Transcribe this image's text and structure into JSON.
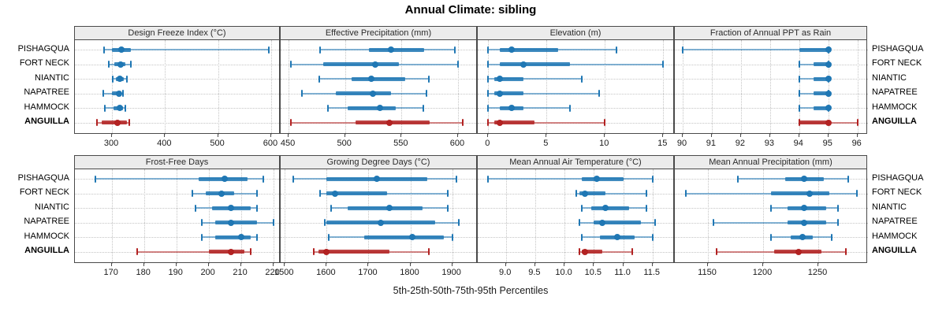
{
  "title": "Annual Climate: sibling",
  "caption": "5th-25th-50th-75th-95th Percentiles",
  "colors": {
    "series_default": "#1F77B4",
    "series_highlight": "#B22222",
    "strip_bg": "#ECECEC",
    "panel_border": "#4A4A4A",
    "grid": "#C4C4C4"
  },
  "stations": [
    {
      "label": "PISHAGQUA",
      "highlight": false
    },
    {
      "label": "FORT NECK",
      "highlight": false
    },
    {
      "label": "NIANTIC",
      "highlight": false
    },
    {
      "label": "NAPATREE",
      "highlight": false
    },
    {
      "label": "HAMMOCK",
      "highlight": false
    },
    {
      "label": "ANGUILLA",
      "highlight": true
    }
  ],
  "chart_data": [
    {
      "type": "dotplot-percentiles",
      "slug": "design-freeze-index",
      "row": 0,
      "col": 0,
      "title": "Design Freeze Index (°C)",
      "domain": [
        230,
        618
      ],
      "ticks": [
        300,
        400,
        500,
        600
      ],
      "tick_labels": [
        "300",
        "400",
        "500",
        "600"
      ],
      "percentiles": [
        "5th",
        "25th",
        "50th",
        "75th",
        "95th"
      ],
      "series": [
        {
          "name": "PISHAGQUA",
          "values": [
            285,
            300,
            318,
            335,
            595
          ]
        },
        {
          "name": "FORT NECK",
          "values": [
            294,
            305,
            316,
            325,
            336
          ]
        },
        {
          "name": "NIANTIC",
          "values": [
            302,
            308,
            315,
            322,
            328
          ]
        },
        {
          "name": "NAPATREE",
          "values": [
            283,
            300,
            313,
            318,
            321
          ]
        },
        {
          "name": "HAMMOCK",
          "values": [
            286,
            303,
            314,
            320,
            325
          ]
        },
        {
          "name": "ANGUILLA",
          "values": [
            271,
            280,
            311,
            328,
            333
          ]
        }
      ]
    },
    {
      "type": "dotplot-percentiles",
      "slug": "effective-precipitation",
      "row": 0,
      "col": 1,
      "title": "Effective Precipitation (mm)",
      "domain": [
        443,
        617.5
      ],
      "ticks": [
        450,
        500,
        550,
        600
      ],
      "tick_labels": [
        "450",
        "500",
        "550",
        "600"
      ],
      "percentiles": [
        "5th",
        "25th",
        "50th",
        "75th",
        "95th"
      ],
      "series": [
        {
          "name": "PISHAGQUA",
          "values": [
            478,
            521,
            541,
            570,
            597
          ]
        },
        {
          "name": "FORT NECK",
          "values": [
            452,
            481,
            527,
            548,
            600
          ]
        },
        {
          "name": "NIANTIC",
          "values": [
            477,
            506,
            523,
            553,
            574
          ]
        },
        {
          "name": "NAPATREE",
          "values": [
            462,
            492,
            525,
            541,
            572
          ]
        },
        {
          "name": "HAMMOCK",
          "values": [
            485,
            502,
            531,
            545,
            569
          ]
        },
        {
          "name": "ANGUILLA",
          "values": [
            452,
            509,
            539,
            575,
            604
          ]
        }
      ]
    },
    {
      "type": "dotplot-percentiles",
      "slug": "elevation",
      "row": 0,
      "col": 2,
      "title": "Elevation (m)",
      "domain": [
        -0.9,
        16
      ],
      "ticks": [
        0,
        5,
        10,
        15
      ],
      "tick_labels": [
        "0",
        "5",
        "10",
        "15"
      ],
      "percentiles": [
        "5th",
        "25th",
        "50th",
        "75th",
        "95th"
      ],
      "series": [
        {
          "name": "PISHAGQUA",
          "values": [
            0,
            1,
            2,
            6,
            11
          ]
        },
        {
          "name": "FORT NECK",
          "values": [
            0,
            1,
            3,
            7,
            15
          ]
        },
        {
          "name": "NIANTIC",
          "values": [
            0,
            0.5,
            1,
            3,
            8
          ]
        },
        {
          "name": "NAPATREE",
          "values": [
            0,
            0.5,
            1,
            3,
            9.5
          ]
        },
        {
          "name": "HAMMOCK",
          "values": [
            0,
            1,
            2,
            3,
            7
          ]
        },
        {
          "name": "ANGUILLA",
          "values": [
            0,
            0.5,
            1,
            4,
            10
          ]
        }
      ]
    },
    {
      "type": "dotplot-percentiles",
      "slug": "fraction-annual-ppt-as-rain",
      "row": 0,
      "col": 3,
      "title": "Fraction of Annual PPT as Rain",
      "domain": [
        89.73,
        96.36
      ],
      "ticks": [
        90,
        91,
        92,
        93,
        94,
        95,
        96
      ],
      "tick_labels": [
        "90",
        "91",
        "92",
        "93",
        "94",
        "95",
        "96"
      ],
      "percentiles": [
        "5th",
        "25th",
        "50th",
        "75th",
        "95th"
      ],
      "series": [
        {
          "name": "PISHAGQUA",
          "values": [
            90,
            94,
            95,
            95,
            95
          ]
        },
        {
          "name": "FORT NECK",
          "values": [
            94,
            94.5,
            95,
            95,
            95
          ]
        },
        {
          "name": "NIANTIC",
          "values": [
            94,
            94.5,
            95,
            95,
            95
          ]
        },
        {
          "name": "NAPATREE",
          "values": [
            94,
            94.5,
            95,
            95,
            95
          ]
        },
        {
          "name": "HAMMOCK",
          "values": [
            94,
            94.5,
            95,
            95,
            95
          ]
        },
        {
          "name": "ANGUILLA",
          "values": [
            94,
            94,
            95,
            95,
            96
          ]
        }
      ]
    },
    {
      "type": "dotplot-percentiles",
      "slug": "frost-free-days",
      "row": 1,
      "col": 0,
      "title": "Frost-Free Days",
      "domain": [
        158.6,
        222.3
      ],
      "ticks": [
        170,
        180,
        190,
        200,
        210,
        220
      ],
      "tick_labels": [
        "170",
        "180",
        "190",
        "200",
        "210",
        "220"
      ],
      "percentiles": [
        "5th",
        "25th",
        "50th",
        "75th",
        "95th"
      ],
      "series": [
        {
          "name": "PISHAGQUA",
          "values": [
            165,
            197,
            205,
            212,
            217
          ]
        },
        {
          "name": "FORT NECK",
          "values": [
            195,
            199,
            204,
            208,
            215
          ]
        },
        {
          "name": "NIANTIC",
          "values": [
            196,
            201,
            207,
            213,
            215
          ]
        },
        {
          "name": "NAPATREE",
          "values": [
            198,
            202,
            207,
            215,
            220
          ]
        },
        {
          "name": "HAMMOCK",
          "values": [
            198,
            202,
            210,
            213,
            215
          ]
        },
        {
          "name": "ANGUILLA",
          "values": [
            178,
            200,
            207,
            211,
            213
          ]
        }
      ]
    },
    {
      "type": "dotplot-percentiles",
      "slug": "growing-degree-days",
      "row": 1,
      "col": 1,
      "title": "Growing Degree Days (°C)",
      "domain": [
        1490,
        1961
      ],
      "ticks": [
        1500,
        1600,
        1700,
        1800,
        1900
      ],
      "tick_labels": [
        "1500",
        "1600",
        "1700",
        "1800",
        "1900"
      ],
      "percentiles": [
        "5th",
        "25th",
        "50th",
        "75th",
        "95th"
      ],
      "series": [
        {
          "name": "PISHAGQUA",
          "values": [
            1520,
            1600,
            1720,
            1840,
            1910
          ]
        },
        {
          "name": "FORT NECK",
          "values": [
            1585,
            1600,
            1620,
            1745,
            1890
          ]
        },
        {
          "name": "NIANTIC",
          "values": [
            1610,
            1650,
            1750,
            1830,
            1890
          ]
        },
        {
          "name": "NAPATREE",
          "values": [
            1595,
            1600,
            1730,
            1860,
            1915
          ]
        },
        {
          "name": "HAMMOCK",
          "values": [
            1605,
            1690,
            1805,
            1880,
            1900
          ]
        },
        {
          "name": "ANGUILLA",
          "values": [
            1570,
            1580,
            1600,
            1750,
            1845
          ]
        }
      ]
    },
    {
      "type": "dotplot-percentiles",
      "slug": "mean-annual-air-temperature",
      "row": 1,
      "col": 2,
      "title": "Mean Annual Air Temperature (°C)",
      "domain": [
        8.52,
        11.88
      ],
      "ticks": [
        9.0,
        9.5,
        10.0,
        10.5,
        11.0,
        11.5
      ],
      "tick_labels": [
        "9.0",
        "9.5",
        "10.0",
        "10.5",
        "11.0",
        "11.5"
      ],
      "percentiles": [
        "5th",
        "25th",
        "50th",
        "75th",
        "95th"
      ],
      "series": [
        {
          "name": "PISHAGQUA",
          "values": [
            8.7,
            10.3,
            10.55,
            11.0,
            11.5
          ]
        },
        {
          "name": "FORT NECK",
          "values": [
            10.2,
            10.25,
            10.35,
            10.7,
            11.4
          ]
        },
        {
          "name": "NIANTIC",
          "values": [
            10.3,
            10.45,
            10.7,
            11.1,
            11.4
          ]
        },
        {
          "name": "NAPATREE",
          "values": [
            10.25,
            10.5,
            10.65,
            11.3,
            11.55
          ]
        },
        {
          "name": "HAMMOCK",
          "values": [
            10.3,
            10.6,
            10.9,
            11.2,
            11.5
          ]
        },
        {
          "name": "ANGUILLA",
          "values": [
            10.25,
            10.3,
            10.35,
            10.65,
            11.15
          ]
        }
      ]
    },
    {
      "type": "dotplot-percentiles",
      "slug": "mean-annual-precipitation",
      "row": 1,
      "col": 3,
      "title": "Mean Annual Precipitation (mm)",
      "domain": [
        1120,
        1295
      ],
      "ticks": [
        1150,
        1200,
        1250
      ],
      "tick_labels": [
        "1150",
        "1200",
        "1250"
      ],
      "percentiles": [
        "5th",
        "25th",
        "50th",
        "75th",
        "95th"
      ],
      "series": [
        {
          "name": "PISHAGQUA",
          "values": [
            1177,
            1220,
            1237,
            1255,
            1277
          ]
        },
        {
          "name": "FORT NECK",
          "values": [
            1130,
            1207,
            1242,
            1260,
            1285
          ]
        },
        {
          "name": "NIANTIC",
          "values": [
            1207,
            1222,
            1237,
            1257,
            1268
          ]
        },
        {
          "name": "NAPATREE",
          "values": [
            1155,
            1222,
            1237,
            1257,
            1268
          ]
        },
        {
          "name": "HAMMOCK",
          "values": [
            1207,
            1225,
            1236,
            1245,
            1262
          ]
        },
        {
          "name": "ANGUILLA",
          "values": [
            1158,
            1210,
            1232,
            1253,
            1275
          ]
        }
      ]
    }
  ]
}
